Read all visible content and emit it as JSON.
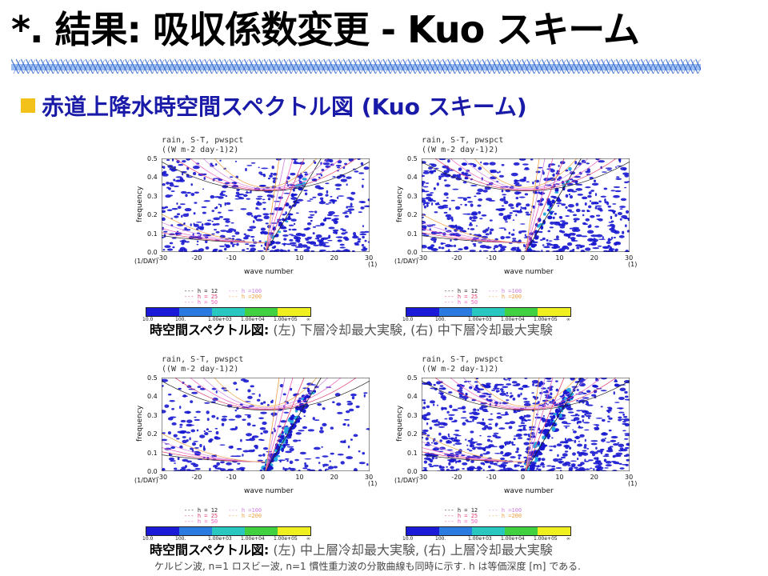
{
  "slide": {
    "title": "*. 結果: 吸収係数変更 - Kuo スキーム",
    "subtitle": "赤道上降水時空間スペクトル図 (Kuo スキーム)",
    "caption_top_bold": "時空間スペクトル図:",
    "caption_top_rest": "(左) 下層冷却最大実験, (右) 中下層冷却最大実験",
    "caption_bottom_bold": "時空間スペクトル図:",
    "caption_bottom_rest": "(左) 中上層冷却最大実験, (右) 上層冷却最大実験",
    "footnote": "ケルビン波, n=1 ロスビー波, n=1 慣性重力波の分散曲線も同時に示す. h は等価深度 [m] である."
  },
  "panel_common": {
    "title1": "rain, S-T, pwspct",
    "title2": "((W m-2 day-1)2)",
    "ylabel": "frequency",
    "xlabel": "wave number",
    "y_unit": "(1/DAY)",
    "x_unit": "(1)",
    "xticks": [
      "-30",
      "-20",
      "-10",
      "0",
      "10",
      "20",
      "30"
    ],
    "yticks": [
      "0.0",
      "0.1",
      "0.2",
      "0.3",
      "0.4",
      "0.5"
    ],
    "h_legend": [
      "--- h = 12",
      "--- h = 25",
      "--- h = 50",
      "--- h =100",
      "--- h =200"
    ],
    "colorbar_labels": [
      "10.0",
      "100.",
      "1.00e+03",
      "1.00e+04",
      "1.00e+05",
      "∞"
    ],
    "colorbar_colors": [
      "#1a1ad8",
      "#2a7ae0",
      "#28c8c0",
      "#40d040",
      "#f0f020"
    ]
  },
  "chart_data": [
    {
      "type": "heatmap",
      "panel": "top-left",
      "label": "下層冷却最大実験",
      "xlim": [
        -30,
        30
      ],
      "ylim": [
        0,
        0.5
      ],
      "density": 0.62,
      "kelvin_strength": 0.2
    },
    {
      "type": "heatmap",
      "panel": "top-right",
      "label": "中下層冷却最大実験",
      "xlim": [
        -30,
        30
      ],
      "ylim": [
        0,
        0.5
      ],
      "density": 0.68,
      "kelvin_strength": 0.25
    },
    {
      "type": "heatmap",
      "panel": "bottom-left",
      "label": "中上層冷却最大実験",
      "xlim": [
        -30,
        30
      ],
      "ylim": [
        0,
        0.5
      ],
      "density": 0.35,
      "kelvin_strength": 0.9
    },
    {
      "type": "heatmap",
      "panel": "bottom-right",
      "label": "上層冷却最大実験",
      "xlim": [
        -30,
        30
      ],
      "ylim": [
        0,
        0.5
      ],
      "density": 0.85,
      "kelvin_strength": 0.7
    }
  ]
}
